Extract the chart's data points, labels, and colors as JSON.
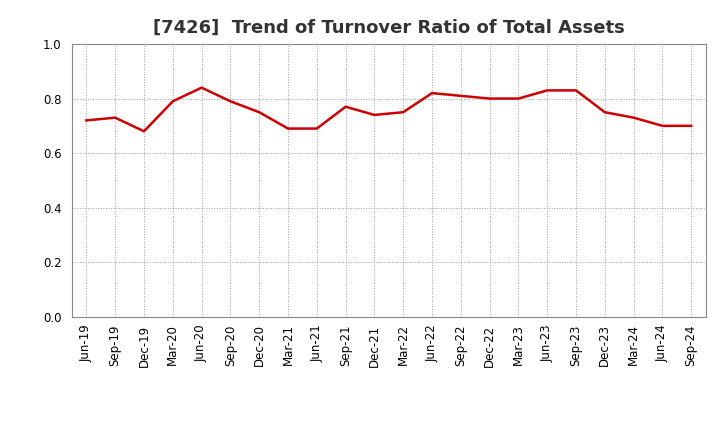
{
  "title": "[7426]  Trend of Turnover Ratio of Total Assets",
  "x_labels": [
    "Jun-19",
    "Sep-19",
    "Dec-19",
    "Mar-20",
    "Jun-20",
    "Sep-20",
    "Dec-20",
    "Mar-21",
    "Jun-21",
    "Sep-21",
    "Dec-21",
    "Mar-22",
    "Jun-22",
    "Sep-22",
    "Dec-22",
    "Mar-23",
    "Jun-23",
    "Sep-23",
    "Dec-23",
    "Mar-24",
    "Jun-24",
    "Sep-24"
  ],
  "values": [
    0.72,
    0.73,
    0.68,
    0.79,
    0.84,
    0.79,
    0.75,
    0.69,
    0.69,
    0.77,
    0.74,
    0.75,
    0.82,
    0.81,
    0.8,
    0.8,
    0.83,
    0.83,
    0.75,
    0.73,
    0.7,
    0.7
  ],
  "line_color": "#cc0000",
  "line_width": 1.8,
  "ylim": [
    0.0,
    1.0
  ],
  "yticks": [
    0.0,
    0.2,
    0.4,
    0.6,
    0.8,
    1.0
  ],
  "background_color": "#ffffff",
  "plot_area_color": "#ffffff",
  "grid_color": "#999999",
  "title_fontsize": 13,
  "tick_fontsize": 8.5,
  "title_color": "#333333"
}
